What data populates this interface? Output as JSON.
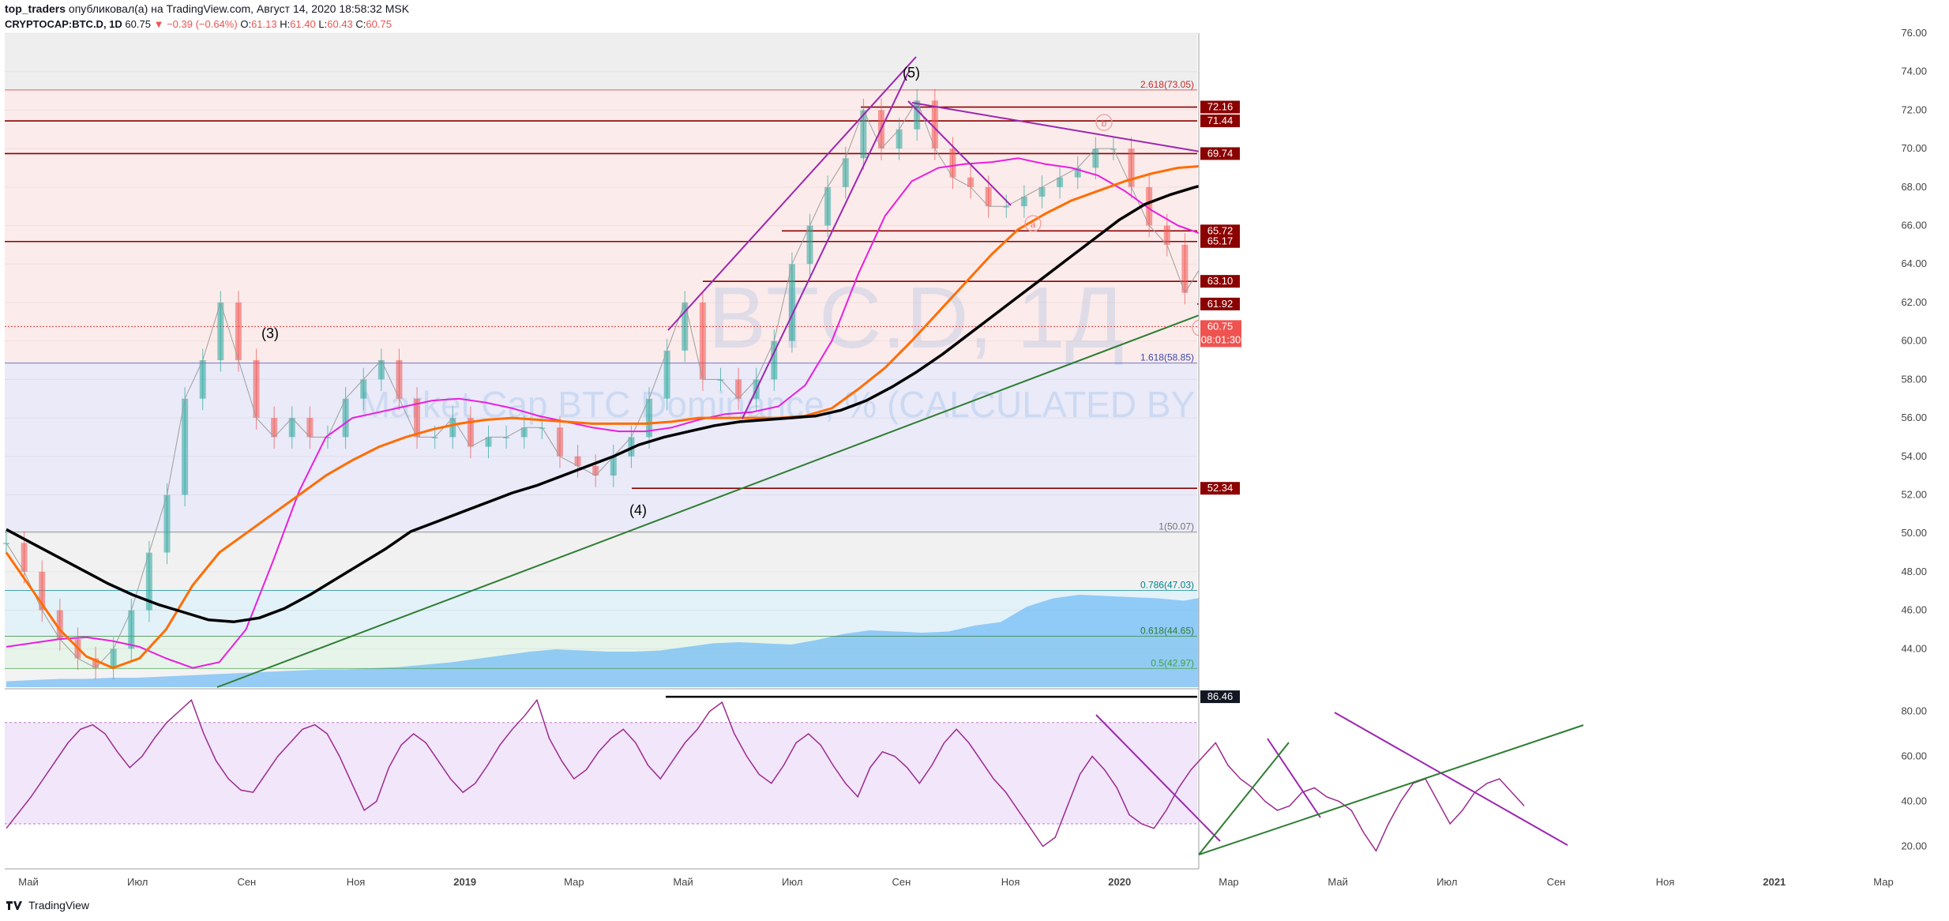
{
  "header": {
    "author": "top_traders",
    "published": "опубликовал(а) на TradingView.com, Август 14, 2020 18:58:32 MSK",
    "symbol": "CRYPTOCAP:BTC.D, 1D",
    "last": "60.75",
    "change": "▼ −0.39 (−0.64%)",
    "o_label": "O:",
    "o_value": "61.13",
    "h_label": "H:",
    "h_value": "61.40",
    "l_label": "L:",
    "l_value": "60.43",
    "c_label": "C:",
    "c_value": "60.75"
  },
  "watermark": {
    "symbol": "BTC.D, 1Д",
    "description": "Market Cap BTC Dominance, % (CALCULATED BY TRADINGVIEW)"
  },
  "footer": {
    "brand": "TradingView"
  },
  "colors": {
    "resistance": "#8b0000",
    "ma_orange": "#ff6d00",
    "ma_black": "#000000",
    "ma_magenta": "#e91ee0",
    "trend_purple": "#9c27b0",
    "trend_green": "#2e7d32",
    "annotation_red": "#e53935",
    "volume": "#64b5f6",
    "rsi_line": "#9c2a8e",
    "rsi_band": "#e7d5f7"
  },
  "chart_data": [
    {
      "type": "line",
      "name": "price",
      "ylim": [
        42,
        76
      ],
      "y_ticks": [
        "44.00",
        "46.00",
        "48.00",
        "50.00",
        "52.00",
        "54.00",
        "56.00",
        "58.00",
        "60.00",
        "62.00",
        "64.00",
        "66.00",
        "68.00",
        "70.00",
        "72.00",
        "74.00",
        "76.00"
      ],
      "x_labels": [
        "Май",
        "Июл",
        "Сен",
        "Ноя",
        "2019",
        "Мар",
        "Май",
        "Июл",
        "Сен",
        "Ноя",
        "2020",
        "Мар",
        "Май",
        "Июл",
        "Сен",
        "Ноя",
        "2021",
        "Мар"
      ],
      "wave_labels": [
        "(3)",
        "(4)",
        "(5)",
        "a",
        "b",
        "c"
      ],
      "price_levels": [
        {
          "label": "72.16",
          "value": 72.16
        },
        {
          "label": "71.44",
          "value": 71.44
        },
        {
          "label": "69.74",
          "value": 69.74
        },
        {
          "label": "65.72",
          "value": 65.72
        },
        {
          "label": "65.17",
          "value": 65.17
        },
        {
          "label": "63.10",
          "value": 63.1
        },
        {
          "label": "61.92",
          "value": 61.92
        },
        {
          "label": "52.34",
          "value": 52.34
        }
      ],
      "current": {
        "label": "60.75",
        "value": 60.75,
        "countdown": "08:01:30"
      },
      "fib_levels": [
        {
          "label": "2.618(73.05)",
          "value": 73.05,
          "color": "#c62828"
        },
        {
          "label": "1.618(58.85)",
          "value": 58.85,
          "color": "#3949ab"
        },
        {
          "label": "1(50.07)",
          "value": 50.07,
          "color": "#757575"
        },
        {
          "label": "0.786(47.03)",
          "value": 47.03,
          "color": "#00838f"
        },
        {
          "label": "0.618(44.65)",
          "value": 44.65,
          "color": "#2e7d32"
        },
        {
          "label": "0.5(42.97)",
          "value": 42.97,
          "color": "#43a047"
        }
      ],
      "closes": [
        49.5,
        48,
        46,
        44.5,
        43.5,
        43,
        44,
        46,
        49,
        52,
        57,
        59,
        62,
        59,
        56,
        55,
        56,
        55,
        55,
        57,
        58,
        59,
        57,
        55,
        55,
        56,
        54.5,
        55,
        55,
        55.5,
        55.5,
        54,
        53.5,
        53,
        54,
        55,
        57,
        59.5,
        62,
        58,
        58,
        57,
        58,
        60,
        64,
        66,
        68,
        69.5,
        72,
        70,
        71,
        72.5,
        70,
        68.5,
        68,
        67,
        67,
        67.5,
        68,
        68.5,
        69,
        70,
        70,
        68,
        66,
        65,
        62.5,
        64,
        65,
        66,
        67,
        66,
        65,
        64.5,
        66,
        68,
        67.5,
        67,
        65.5,
        64.5,
        65,
        65.5,
        64,
        62.5,
        61.5,
        60.75
      ],
      "ma_orange": [
        49,
        47,
        45,
        43.6,
        43,
        43.5,
        45,
        47.3,
        49,
        50,
        51,
        52,
        53,
        53.8,
        54.5,
        55,
        55.4,
        55.7,
        55.9,
        56,
        55.9,
        55.8,
        55.7,
        55.7,
        55.7,
        55.8,
        56,
        56,
        56,
        56,
        56.1,
        56.5,
        57.5,
        58.6,
        60,
        61.5,
        63,
        64.5,
        65.8,
        66.6,
        67.3,
        67.8,
        68.3,
        68.7,
        69,
        69.1,
        69,
        68.8,
        68.5,
        68,
        67.5,
        67.1,
        66.9,
        66.8,
        66.5,
        66.2,
        65.7,
        65.3
      ],
      "ma_black": [
        50.2,
        49.5,
        48.8,
        48.1,
        47.4,
        46.8,
        46.3,
        45.9,
        45.5,
        45.4,
        45.6,
        46.1,
        46.8,
        47.6,
        48.4,
        49.2,
        50.1,
        50.6,
        51.1,
        51.6,
        52.1,
        52.5,
        53,
        53.5,
        54,
        54.6,
        55,
        55.3,
        55.6,
        55.8,
        55.9,
        56,
        56.1,
        56.4,
        56.9,
        57.6,
        58.4,
        59.3,
        60.3,
        61.3,
        62.3,
        63.3,
        64.3,
        65.3,
        66.3,
        67.1,
        67.6,
        68,
        68.3,
        68.5,
        68.5,
        68.4,
        68.3,
        68.1,
        67.8,
        67.6,
        67.4,
        67.2,
        67,
        66.6,
        66.2
      ],
      "ma_magenta": [
        44.1,
        44.3,
        44.5,
        44.6,
        44.4,
        44.1,
        43.5,
        43,
        43.3,
        45,
        48.5,
        52.2,
        55,
        56,
        56.3,
        56.6,
        56.9,
        57,
        56.8,
        56.5,
        56.1,
        55.8,
        55.5,
        55.3,
        55.3,
        55.5,
        55.9,
        56.2,
        56.3,
        56.6,
        57.7,
        60,
        63.5,
        66.5,
        68.3,
        69,
        69.2,
        69.3,
        69.5,
        69.2,
        69,
        68.6,
        67.8,
        66.8,
        66,
        65.5,
        65.8,
        66.7,
        67.2,
        67.4,
        66.7,
        66,
        65.8,
        66,
        66.2,
        66.1,
        65.6,
        65.2
      ],
      "volume": [
        0.05,
        0.06,
        0.07,
        0.07,
        0.08,
        0.08,
        0.09,
        0.1,
        0.11,
        0.12,
        0.13,
        0.14,
        0.15,
        0.15,
        0.16,
        0.17,
        0.19,
        0.21,
        0.24,
        0.27,
        0.3,
        0.32,
        0.31,
        0.3,
        0.3,
        0.31,
        0.34,
        0.37,
        0.38,
        0.37,
        0.36,
        0.4,
        0.45,
        0.48,
        0.47,
        0.46,
        0.47,
        0.52,
        0.55,
        0.68,
        0.75,
        0.78,
        0.77,
        0.76,
        0.75,
        0.73,
        0.77,
        0.82,
        0.75,
        0.65,
        0.58,
        0.54,
        0.5,
        0.48,
        0.3,
        0.2,
        0.22,
        0.28,
        0.55
      ]
    },
    {
      "type": "line",
      "name": "RSI",
      "ylim": [
        10,
        90
      ],
      "y_ticks": [
        "20.00",
        "40.00",
        "60.00",
        "80.00"
      ],
      "marker": {
        "label": "86.46",
        "value": 86.46
      },
      "band": [
        30,
        75
      ],
      "values": [
        28,
        35,
        42,
        50,
        58,
        66,
        72,
        74,
        70,
        62,
        55,
        60,
        68,
        75,
        80,
        85,
        70,
        58,
        50,
        45,
        44,
        52,
        60,
        66,
        72,
        74,
        70,
        60,
        48,
        36,
        40,
        55,
        65,
        70,
        66,
        58,
        50,
        44,
        48,
        56,
        65,
        72,
        78,
        85,
        68,
        58,
        50,
        54,
        62,
        68,
        72,
        66,
        56,
        50,
        58,
        66,
        72,
        80,
        84,
        70,
        60,
        52,
        48,
        56,
        66,
        70,
        65,
        56,
        48,
        42,
        55,
        62,
        60,
        55,
        48,
        56,
        66,
        72,
        66,
        58,
        50,
        44,
        36,
        28,
        20,
        24,
        38,
        52,
        60,
        54,
        46,
        34,
        30,
        28,
        36,
        46,
        54,
        60,
        66,
        56,
        50,
        46,
        40,
        36,
        38,
        44,
        46,
        42,
        40,
        36,
        26,
        18,
        30,
        40,
        48,
        50,
        40,
        30,
        36,
        44,
        48,
        50,
        44,
        38
      ]
    }
  ]
}
